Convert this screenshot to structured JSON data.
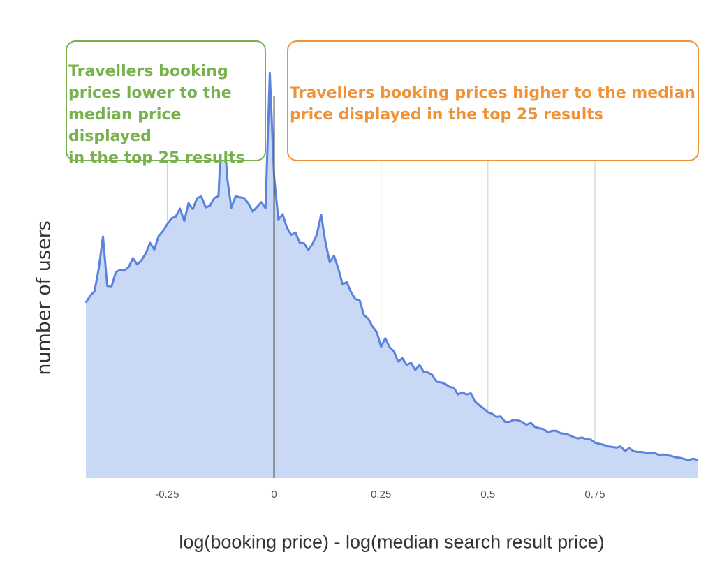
{
  "chart_data": {
    "type": "area",
    "title": "",
    "xlabel": "log(booking price) - log(median search result price)",
    "ylabel": "number of users",
    "xlim": [
      -0.44,
      0.99
    ],
    "ylim": [
      0,
      100
    ],
    "x_ticks": [
      "-0.25",
      "0",
      "0.25",
      "0.5",
      "0.75"
    ],
    "x_tick_values": [
      -0.25,
      0,
      0.25,
      0.5,
      0.75
    ],
    "grid": "vertical",
    "reference_line_x": 0,
    "y_tick_labels_shown": false,
    "colors": {
      "line": "#5b82dd",
      "fill": "#c9d8f4",
      "grid": "#cccccc",
      "reference": "#555555"
    },
    "annotations": [
      {
        "id": "lower",
        "text": "Travellers booking prices lower to the median price displayed in the top 25 results",
        "lines": [
          "Travellers booking",
          "prices lower to the",
          "median price displayed",
          "in the top 25 results"
        ],
        "color": "#79b14f"
      },
      {
        "id": "higher",
        "text": "Travellers booking prices higher to the median price displayed in the top 25 results",
        "lines": [
          "Travellers booking prices higher to the median",
          "price displayed in the top 25 results"
        ],
        "color": "#ef9338"
      }
    ],
    "series": [
      {
        "x": [
          -0.44,
          -0.43,
          -0.42,
          -0.41,
          -0.4,
          -0.39,
          -0.38,
          -0.37,
          -0.36,
          -0.35,
          -0.34,
          -0.33,
          -0.32,
          -0.31,
          -0.3,
          -0.29,
          -0.28,
          -0.27,
          -0.26,
          -0.25,
          -0.24,
          -0.23,
          -0.22,
          -0.21,
          -0.2,
          -0.19,
          -0.18,
          -0.17,
          -0.16,
          -0.15,
          -0.14,
          -0.13,
          -0.12,
          -0.11,
          -0.1,
          -0.09,
          -0.08,
          -0.07,
          -0.06,
          -0.05,
          -0.04,
          -0.03,
          -0.02,
          -0.01,
          0.0,
          0.01,
          0.02,
          0.03,
          0.04,
          0.05,
          0.06,
          0.07,
          0.08,
          0.09,
          0.1,
          0.11,
          0.12,
          0.13,
          0.14,
          0.15,
          0.16,
          0.17,
          0.18,
          0.19,
          0.2,
          0.21,
          0.22,
          0.23,
          0.24,
          0.25,
          0.26,
          0.27,
          0.28,
          0.29,
          0.3,
          0.31,
          0.32,
          0.33,
          0.34,
          0.35,
          0.36,
          0.37,
          0.38,
          0.39,
          0.4,
          0.41,
          0.42,
          0.43,
          0.44,
          0.45,
          0.46,
          0.47,
          0.48,
          0.49,
          0.5,
          0.51,
          0.52,
          0.53,
          0.54,
          0.55,
          0.56,
          0.57,
          0.58,
          0.59,
          0.6,
          0.61,
          0.62,
          0.63,
          0.64,
          0.65,
          0.66,
          0.67,
          0.68,
          0.69,
          0.7,
          0.71,
          0.72,
          0.73,
          0.74,
          0.75,
          0.76,
          0.77,
          0.78,
          0.79,
          0.8,
          0.81,
          0.82,
          0.83,
          0.84,
          0.85,
          0.86,
          0.87,
          0.88,
          0.89,
          0.9,
          0.91,
          0.92,
          0.93,
          0.94,
          0.95,
          0.96,
          0.97,
          0.98,
          0.99
        ],
        "values": [
          41.5,
          43.2,
          44.2,
          49.6,
          57.2,
          45.5,
          45.4,
          48.8,
          49.3,
          49.1,
          50.0,
          52.1,
          50.6,
          51.6,
          53.2,
          55.7,
          54.1,
          57.3,
          58.5,
          60.1,
          61.5,
          61.9,
          63.8,
          60.9,
          65.1,
          63.7,
          66.3,
          66.7,
          64.1,
          64.5,
          66.3,
          66.8,
          88.3,
          71.2,
          64.0,
          66.8,
          66.5,
          66.3,
          65.0,
          63.1,
          64.2,
          65.3,
          63.9,
          96.0,
          71.5,
          61.2,
          62.5,
          59.3,
          57.6,
          58.1,
          55.7,
          55.6,
          54.0,
          55.5,
          57.7,
          62.4,
          56.0,
          51.1,
          52.7,
          49.7,
          45.9,
          46.4,
          44.0,
          42.4,
          42.1,
          38.6,
          37.8,
          35.9,
          34.6,
          31.1,
          33.1,
          31.0,
          30.0,
          27.6,
          28.4,
          26.8,
          27.3,
          25.6,
          26.8,
          25.1,
          25.0,
          24.4,
          22.8,
          22.7,
          22.3,
          21.6,
          21.4,
          19.8,
          20.3,
          19.8,
          20.1,
          18.1,
          17.2,
          16.5,
          15.6,
          15.2,
          14.5,
          14.6,
          13.3,
          13.3,
          13.8,
          13.7,
          13.3,
          12.6,
          13.1,
          12.1,
          11.8,
          11.6,
          10.8,
          11.2,
          11.2,
          10.6,
          10.5,
          10.2,
          9.7,
          9.4,
          9.6,
          9.2,
          9.1,
          8.4,
          8.1,
          7.9,
          7.5,
          7.4,
          7.2,
          7.5,
          6.4,
          7.1,
          6.4,
          6.2,
          6.2,
          6.0,
          6.0,
          5.9,
          5.5,
          5.6,
          5.4,
          5.2,
          4.9,
          4.8,
          4.5,
          4.3,
          4.6,
          4.3
        ]
      }
    ]
  }
}
